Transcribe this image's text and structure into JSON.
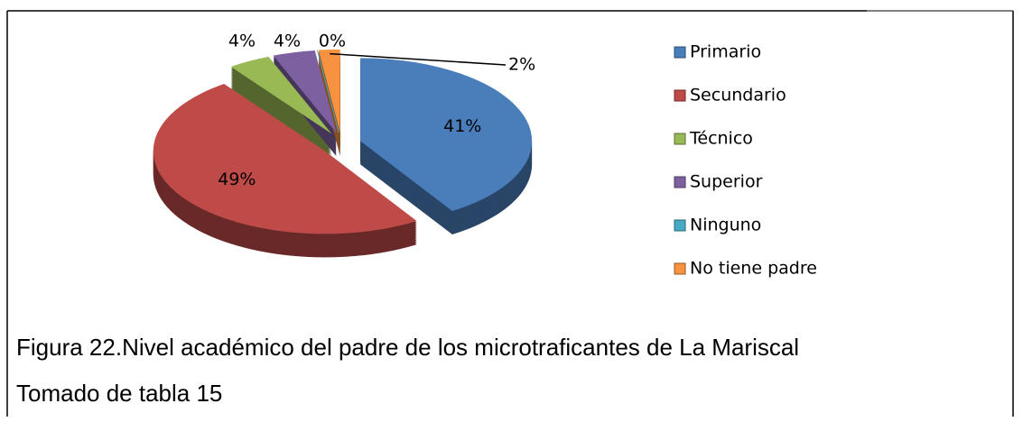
{
  "chart_data": {
    "type": "pie",
    "three_d": true,
    "categories": [
      "Primario",
      "Secundario",
      "Técnico",
      "Superior",
      "Ninguno",
      "No tiene padre"
    ],
    "values": [
      41,
      49,
      4,
      4,
      0,
      2
    ],
    "value_labels": [
      "41%",
      "49%",
      "4%",
      "4%",
      "0%",
      "2%"
    ],
    "colors": [
      "#4a7ebb",
      "#be4b48",
      "#98b954",
      "#7d60a0",
      "#46aac5",
      "#f69240"
    ],
    "legend": "right",
    "caption": "Figura 22.Nivel académico del padre de los microtraficantes de La Mariscal",
    "source": "Tomado de tabla 15"
  }
}
